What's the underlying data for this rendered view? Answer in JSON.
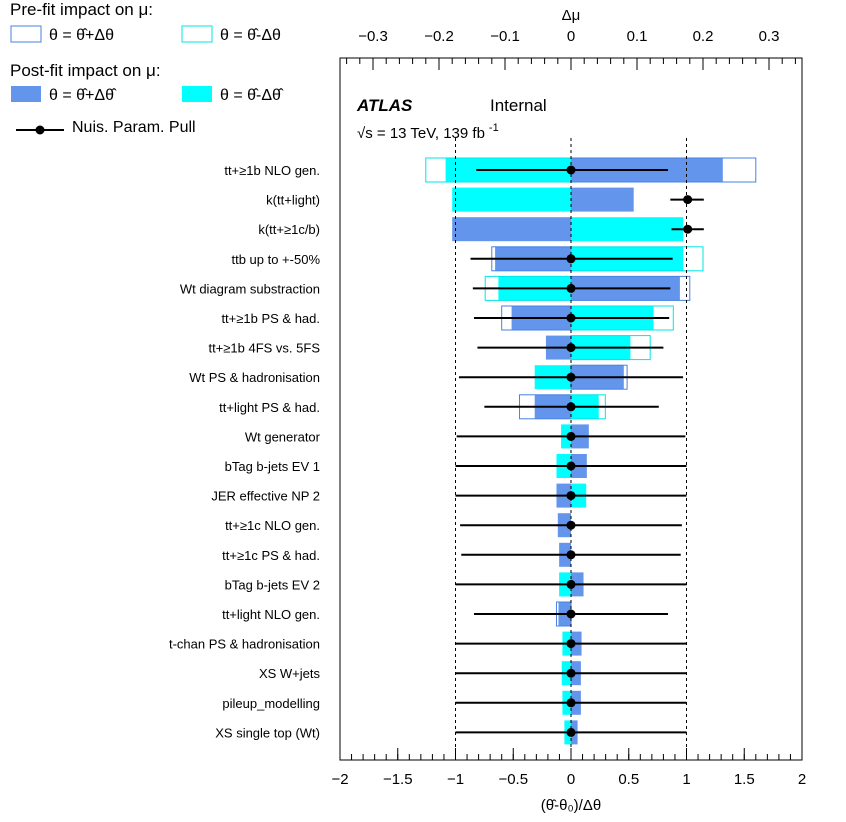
{
  "chart_data": {
    "type": "bar",
    "bottom_axis": {
      "label": "(θ̂-θ₀)/Δθ",
      "range": [
        -2,
        2
      ],
      "ticks": [
        "−2",
        "−1.5",
        "−1",
        "−0.5",
        "0",
        "0.5",
        "1",
        "1.5",
        "2"
      ]
    },
    "top_axis": {
      "label": "Δμ",
      "range": [
        -0.35,
        0.35
      ],
      "ticks": [
        {
          "value": -0.3,
          "label": "−0.3"
        },
        {
          "value": -0.2,
          "label": "−0.2"
        },
        {
          "value": -0.1,
          "label": "−0.1"
        },
        {
          "value": 0,
          "label": "0"
        },
        {
          "value": 0.1,
          "label": "0.1"
        },
        {
          "value": 0.2,
          "label": "0.2"
        },
        {
          "value": 0.3,
          "label": "0.3"
        }
      ]
    },
    "legend": {
      "prefit_title": "Pre-fit impact on  μ:",
      "postfit_title": "Post-fit impact on  μ:",
      "plus_label": "θ = θ̂+Δθ",
      "minus_label": "θ = θ̂-Δθ",
      "post_plus_label": "θ = θ̂+Δθ̂",
      "post_minus_label": "θ = θ̂-Δθ̂",
      "pull_label": "Nuis. Param. Pull"
    },
    "experiment": "ATLAS",
    "status": "Internal",
    "energy_label": "√s = 13 TeV, 139 fb",
    "energy_sup": "-1",
    "colors": {
      "post_plus": "#6495ED",
      "post_minus": "#00FFFF",
      "pre_plus_outline": "#4682E6",
      "pre_minus_outline": "#00E5E5",
      "pull": "#000000"
    },
    "nuisance_parameters": [
      {
        "name": "tt+≥1b NLO gen.",
        "pull": 0.0,
        "err_lo": -0.82,
        "err_hi": 0.84,
        "pre_plus": 0.28,
        "pre_minus": -0.22,
        "post_plus": 0.23,
        "post_minus": -0.19
      },
      {
        "name": "k(tt+light)",
        "pull": 1.01,
        "err_lo": 0.86,
        "err_hi": 1.15,
        "pre_plus": 0.0,
        "pre_minus": 0.0,
        "post_plus": 0.095,
        "post_minus": -0.18
      },
      {
        "name": "k(tt+≥1c/b)",
        "pull": 1.01,
        "err_lo": 0.87,
        "err_hi": 1.15,
        "pre_plus": 0.0,
        "pre_minus": 0.0,
        "post_plus": -0.18,
        "post_minus": 0.17
      },
      {
        "name": "ttb up to +-50%",
        "pull": 0.0,
        "err_lo": -0.87,
        "err_hi": 0.88,
        "pre_plus": -0.12,
        "pre_minus": 0.2,
        "post_plus": -0.115,
        "post_minus": 0.17
      },
      {
        "name": "Wt diagram substraction",
        "pull": 0.0,
        "err_lo": -0.85,
        "err_hi": 0.86,
        "pre_plus": 0.18,
        "pre_minus": -0.13,
        "post_plus": 0.165,
        "post_minus": -0.11
      },
      {
        "name": "tt+≥1b PS & had.",
        "pull": 0.0,
        "err_lo": -0.84,
        "err_hi": 0.85,
        "pre_plus": -0.105,
        "pre_minus": 0.155,
        "post_plus": -0.09,
        "post_minus": 0.125
      },
      {
        "name": "tt+≥1b 4FS vs. 5FS",
        "pull": 0.0,
        "err_lo": -0.81,
        "err_hi": 0.8,
        "pre_plus": 0.0,
        "pre_minus": 0.12,
        "post_plus": -0.038,
        "post_minus": 0.09
      },
      {
        "name": "Wt PS & hadronisation",
        "pull": 0.0,
        "err_lo": -0.97,
        "err_hi": 0.97,
        "pre_plus": 0.085,
        "pre_minus": 0.0,
        "post_plus": 0.08,
        "post_minus": -0.055
      },
      {
        "name": "tt+light PS & had.",
        "pull": 0.0,
        "err_lo": -0.75,
        "err_hi": 0.76,
        "pre_plus": -0.078,
        "pre_minus": 0.052,
        "post_plus": -0.055,
        "post_minus": 0.042
      },
      {
        "name": "Wt generator",
        "pull": 0.0,
        "err_lo": -0.99,
        "err_hi": 0.99,
        "pre_plus": 0.0,
        "pre_minus": 0.0,
        "post_plus": 0.027,
        "post_minus": -0.015
      },
      {
        "name": "bTag b-jets EV 1",
        "pull": 0.0,
        "err_lo": -1.0,
        "err_hi": 1.0,
        "pre_plus": 0.0,
        "pre_minus": 0.0,
        "post_plus": 0.024,
        "post_minus": -0.022
      },
      {
        "name": "JER effective NP 2",
        "pull": 0.0,
        "err_lo": -1.0,
        "err_hi": 1.0,
        "pre_plus": 0.0,
        "pre_minus": 0.0,
        "post_plus": -0.022,
        "post_minus": 0.023
      },
      {
        "name": "tt+≥1c NLO gen.",
        "pull": 0.0,
        "err_lo": -0.96,
        "err_hi": 0.96,
        "pre_plus": 0.0,
        "pre_minus": 0.0,
        "post_plus": -0.02,
        "post_minus": 0.0
      },
      {
        "name": "tt+≥1c PS & had.",
        "pull": 0.0,
        "err_lo": -0.95,
        "err_hi": 0.95,
        "pre_plus": 0.0,
        "pre_minus": 0.0,
        "post_plus": -0.018,
        "post_minus": 0.0
      },
      {
        "name": "bTag b-jets EV 2",
        "pull": 0.0,
        "err_lo": -1.0,
        "err_hi": 1.0,
        "pre_plus": 0.0,
        "pre_minus": 0.0,
        "post_plus": 0.019,
        "post_minus": -0.018
      },
      {
        "name": "tt+light NLO gen.",
        "pull": 0.0,
        "err_lo": -0.84,
        "err_hi": 0.84,
        "pre_plus": -0.022,
        "pre_minus": 0.0,
        "post_plus": -0.019,
        "post_minus": 0.0
      },
      {
        "name": "t-chan PS & hadronisation",
        "pull": 0.0,
        "err_lo": -1.0,
        "err_hi": 1.0,
        "pre_plus": 0.0,
        "pre_minus": 0.0,
        "post_plus": 0.016,
        "post_minus": -0.013
      },
      {
        "name": "XS W+jets",
        "pull": 0.0,
        "err_lo": -1.0,
        "err_hi": 1.0,
        "pre_plus": 0.0,
        "pre_minus": 0.0,
        "post_plus": 0.015,
        "post_minus": -0.014
      },
      {
        "name": "pileup_modelling",
        "pull": 0.0,
        "err_lo": -1.0,
        "err_hi": 1.0,
        "pre_plus": 0.0,
        "pre_minus": 0.0,
        "post_plus": 0.015,
        "post_minus": -0.013
      },
      {
        "name": "XS single top (Wt)",
        "pull": 0.0,
        "err_lo": -1.0,
        "err_hi": 1.0,
        "pre_plus": 0.0,
        "pre_minus": 0.0,
        "post_plus": 0.01,
        "post_minus": -0.01
      }
    ]
  }
}
